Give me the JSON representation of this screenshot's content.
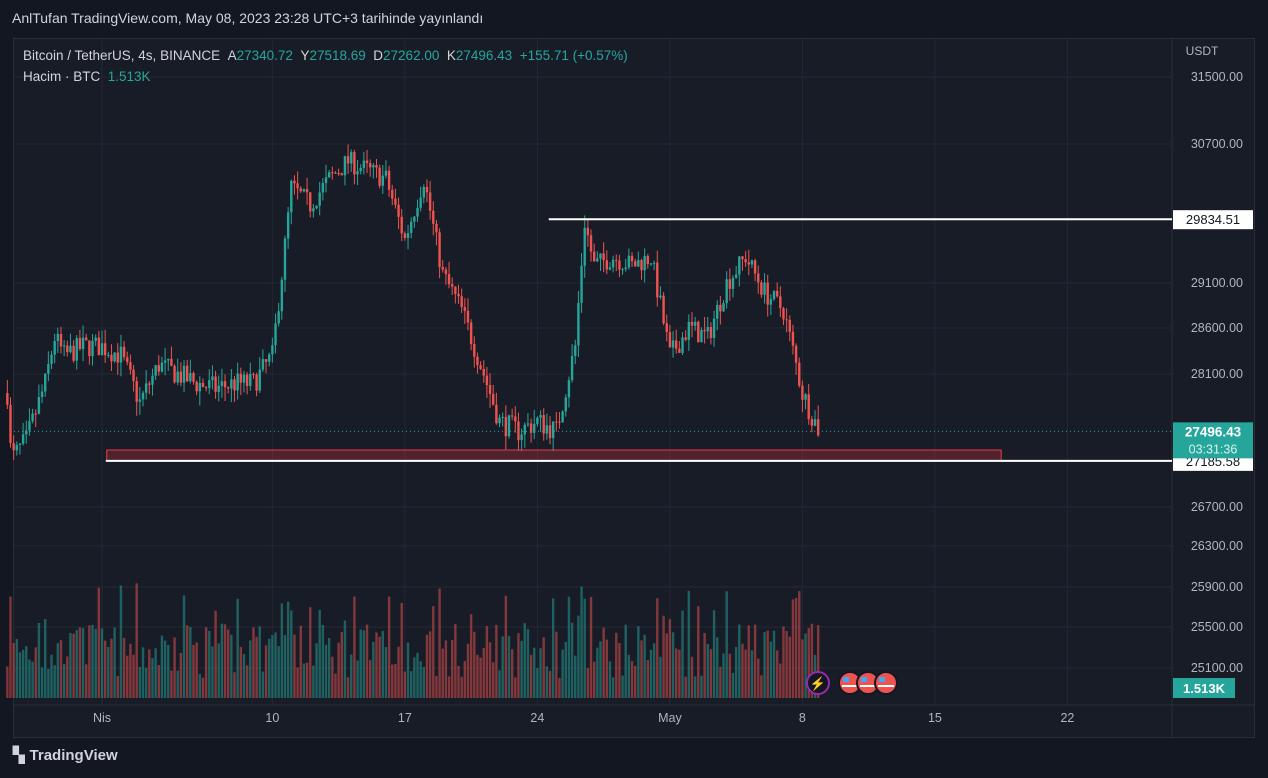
{
  "header": {
    "title": "AnlTufan TradingView.com, May 08, 2023 23:28 UTC+3 tarihinde yayınlandı"
  },
  "legend": {
    "symbol": "Bitcoin / TetherUS, 4s, BINANCE",
    "o_label": "A",
    "open": "27340.72",
    "h_label": "Y",
    "high": "27518.69",
    "l_label": "D",
    "low": "27262.00",
    "c_label": "K",
    "close": "27496.43",
    "change": "+155.71 (+0.57%)",
    "volume_label": "Hacim · BTC",
    "volume": "1.513K"
  },
  "footer": {
    "brand": "TradingView"
  },
  "colors": {
    "up": "#26a69a",
    "down": "#ef5350",
    "bg": "#181c27",
    "grid": "#232734"
  },
  "chart_data": {
    "type": "candlestick",
    "interval": "4h",
    "currency": "USDT",
    "yticks": [
      31500,
      30700,
      29100,
      28600,
      28100,
      26700,
      26300,
      25900,
      25500,
      25100
    ],
    "ytick_labels": [
      "31500.00",
      "30700.00",
      "29100.00",
      "28600.00",
      "28100.00",
      "26700.00",
      "26300.00",
      "25900.00",
      "25500.00",
      "25100.00"
    ],
    "xticks": [
      {
        "label": "Nis",
        "day": 0
      },
      {
        "label": "10",
        "day": 9
      },
      {
        "label": "17",
        "day": 16
      },
      {
        "label": "24",
        "day": 23
      },
      {
        "label": "May",
        "day": 30
      },
      {
        "label": "8",
        "day": 37
      },
      {
        "label": "15",
        "day": 44
      },
      {
        "label": "22",
        "day": 51
      }
    ],
    "price_path_days_from_apr1": [
      [
        -5,
        27900
      ],
      [
        -4.8,
        27200
      ],
      [
        -4,
        27400
      ],
      [
        -3,
        28000
      ],
      [
        -2.5,
        28500
      ],
      [
        -2,
        28300
      ],
      [
        -1,
        28400
      ],
      [
        0,
        28400
      ],
      [
        1,
        28300
      ],
      [
        2,
        27800
      ],
      [
        3,
        28200
      ],
      [
        4,
        28100
      ],
      [
        5,
        28000
      ],
      [
        6,
        27950
      ],
      [
        7,
        28000
      ],
      [
        8,
        28000
      ],
      [
        9,
        28300
      ],
      [
        9.5,
        29200
      ],
      [
        10,
        30200
      ],
      [
        11,
        30000
      ],
      [
        12,
        30300
      ],
      [
        13,
        30500
      ],
      [
        14,
        30400
      ],
      [
        15,
        30300
      ],
      [
        16,
        29600
      ],
      [
        17,
        30300
      ],
      [
        18,
        29200
      ],
      [
        19,
        28800
      ],
      [
        20,
        28200
      ],
      [
        21,
        27600
      ],
      [
        22,
        27500
      ],
      [
        23,
        27600
      ],
      [
        24,
        27500
      ],
      [
        25,
        28400
      ],
      [
        25.5,
        29800
      ],
      [
        26,
        29300
      ],
      [
        27,
        29400
      ],
      [
        28,
        29300
      ],
      [
        29,
        29400
      ],
      [
        30,
        28300
      ],
      [
        31,
        28600
      ],
      [
        32,
        28500
      ],
      [
        33,
        29100
      ],
      [
        34,
        29400
      ],
      [
        35,
        29000
      ],
      [
        36,
        28800
      ],
      [
        37,
        27900
      ],
      [
        37.9,
        27496
      ]
    ],
    "last_price": "27496.43",
    "countdown": "03:31:36",
    "levels": [
      {
        "price": 29834.51,
        "label": "29834.51",
        "from_day": 23.6
      },
      {
        "price": 27185.58,
        "label": "27185.58",
        "from_day": 0.2
      }
    ],
    "zone": {
      "low": 27185.58,
      "high": 27300,
      "from_day": 0.25,
      "to_day": 47.5
    },
    "volume_last": "1.513K"
  }
}
